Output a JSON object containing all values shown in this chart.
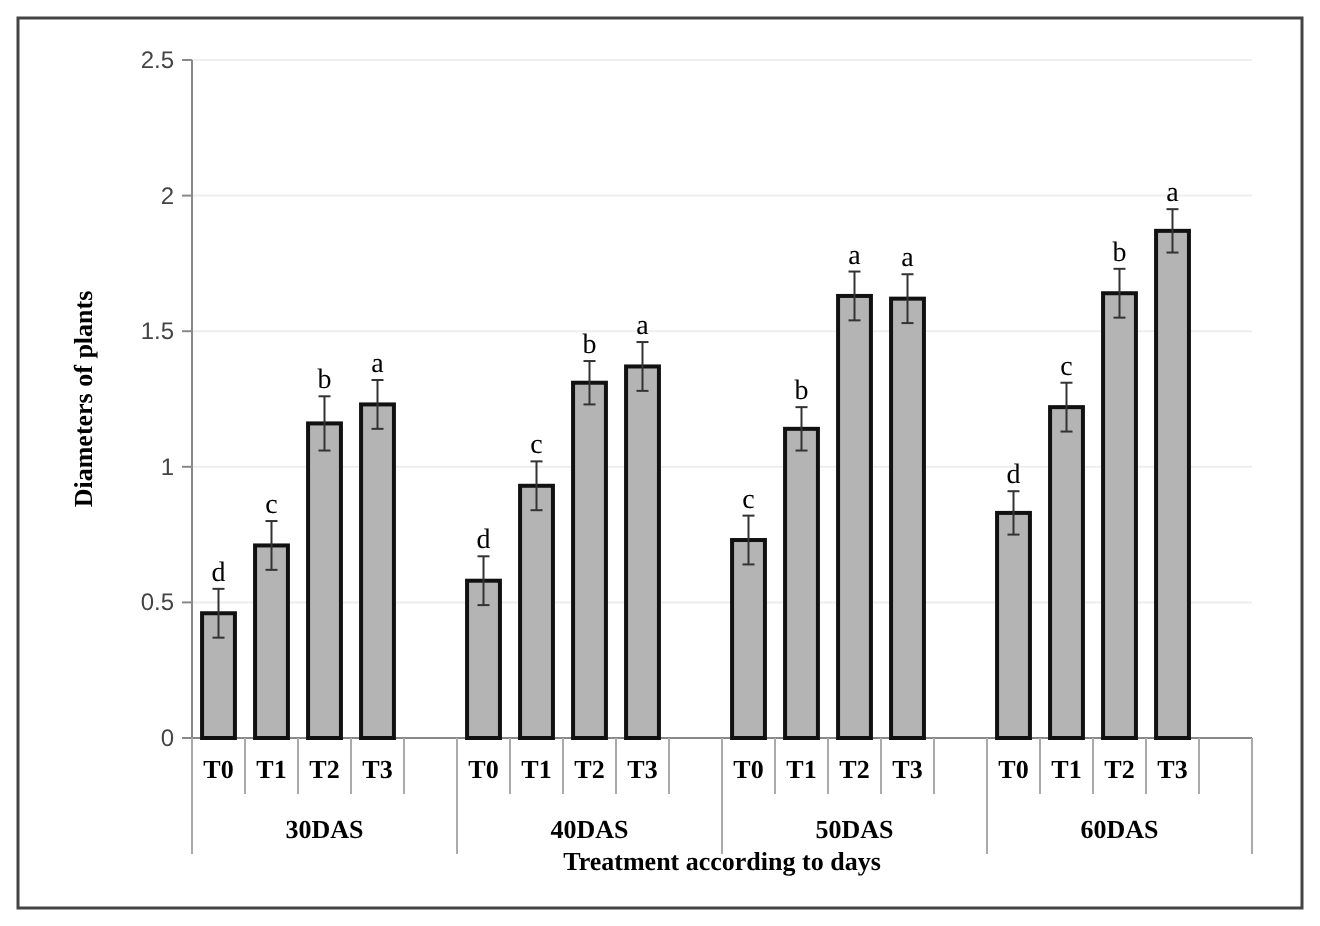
{
  "chart_data": {
    "type": "bar",
    "xlabel": "Treatment according to days",
    "ylabel": "Diameters of plants",
    "categories": [
      "T0",
      "T1",
      "T2",
      "T3",
      "T0",
      "T1",
      "T2",
      "T3",
      "T0",
      "T1",
      "T2",
      "T3",
      "T0",
      "T1",
      "T2",
      "T3"
    ],
    "values": [
      0.46,
      0.71,
      1.16,
      1.23,
      0.58,
      0.93,
      1.31,
      1.37,
      0.73,
      1.14,
      1.63,
      1.62,
      0.83,
      1.22,
      1.64,
      1.87
    ],
    "errors": [
      0.09,
      0.09,
      0.1,
      0.09,
      0.09,
      0.09,
      0.08,
      0.09,
      0.09,
      0.08,
      0.09,
      0.09,
      0.08,
      0.09,
      0.09,
      0.08
    ],
    "value_labels": [
      "d",
      "c",
      "b",
      "a",
      "d",
      "c",
      "b",
      "a",
      "c",
      "b",
      "a",
      "a",
      "d",
      "c",
      "b",
      "a"
    ],
    "annotations": [
      "30DAS",
      "40DAS",
      "50DAS",
      "60DAS"
    ],
    "color": "#b4b4b4",
    "ylim": [
      0,
      2.5
    ],
    "yticks": [
      0,
      0.5,
      1,
      1.5,
      2,
      2.5
    ],
    "grid": "y"
  }
}
